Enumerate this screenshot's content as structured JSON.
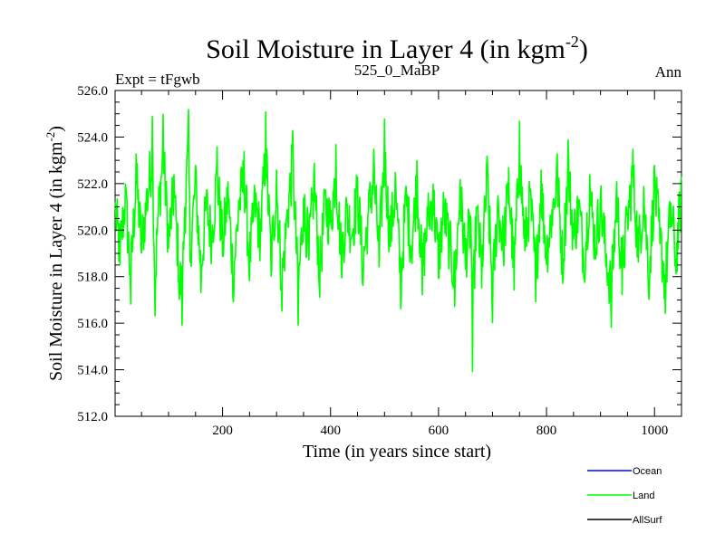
{
  "chart_data": {
    "type": "line",
    "title_main": "Soil Moisture in Layer 4 (in kgm",
    "title_sup": "-2",
    "title_tail": ")",
    "subtitle_left": "Expt = tFgwb",
    "subtitle_center": "525_0_MaBP",
    "subtitle_right": "Ann",
    "xlabel": "Time (in years since start)",
    "ylabel_main": "Soil Moisture in Layer 4 (in kgm",
    "ylabel_sup": "-2",
    "ylabel_tail": ")",
    "xlim": [
      1,
      1050
    ],
    "ylim": [
      512.0,
      526.0
    ],
    "xticks": [
      200,
      400,
      600,
      800,
      1000
    ],
    "xtick_labels": [
      "200",
      "400",
      "600",
      "800",
      "1000"
    ],
    "yticks": [
      512,
      514,
      516,
      518,
      520,
      522,
      524,
      526
    ],
    "ytick_labels": [
      "512.0",
      "514.0",
      "516.0",
      "518.0",
      "520.0",
      "522.0",
      "524.0",
      "526.0"
    ],
    "legend_position": "bottom-right",
    "series": [
      {
        "name": "Ocean",
        "color": "#0000ff",
        "values": []
      },
      {
        "name": "Land",
        "color": "#00ff00",
        "noise": "annual values fluctuate roughly 516-525 around a mean of ~520",
        "x": [
          1,
          10,
          20,
          30,
          40,
          50,
          60,
          70,
          75,
          80,
          90,
          100,
          110,
          120,
          125,
          130,
          137,
          140,
          150,
          160,
          170,
          180,
          190,
          200,
          210,
          220,
          230,
          240,
          250,
          260,
          270,
          280,
          290,
          300,
          310,
          320,
          330,
          340,
          350,
          360,
          370,
          380,
          390,
          400,
          410,
          420,
          430,
          440,
          450,
          460,
          470,
          480,
          490,
          500,
          510,
          520,
          530,
          540,
          550,
          560,
          570,
          580,
          590,
          600,
          610,
          620,
          630,
          640,
          650,
          660,
          663,
          670,
          680,
          690,
          700,
          710,
          720,
          730,
          740,
          750,
          760,
          770,
          780,
          790,
          800,
          810,
          820,
          830,
          840,
          850,
          860,
          870,
          880,
          890,
          900,
          910,
          920,
          930,
          940,
          950,
          960,
          970,
          980,
          990,
          1000,
          1010,
          1020,
          1030,
          1040,
          1050
        ],
        "values": [
          521.2,
          518.5,
          522.0,
          516.8,
          523.3,
          519.0,
          521.8,
          524.9,
          516.3,
          520.5,
          525.0,
          519.2,
          522.4,
          517.0,
          515.9,
          521.0,
          525.2,
          518.6,
          522.8,
          517.3,
          521.5,
          519.4,
          523.6,
          518.9,
          522.1,
          516.9,
          521.3,
          523.4,
          517.8,
          521.7,
          519.5,
          525.1,
          518.0,
          522.6,
          516.5,
          520.9,
          524.3,
          515.9,
          521.4,
          518.7,
          522.9,
          517.1,
          521.6,
          520.3,
          523.7,
          518.2,
          521.1,
          519.8,
          522.3,
          517.6,
          520.8,
          523.5,
          518.4,
          524.8,
          519.3,
          522.5,
          516.6,
          521.9,
          518.8,
          523.0,
          517.2,
          520.6,
          522.0,
          517.9,
          521.2,
          519.0,
          516.7,
          522.2,
          518.3,
          520.4,
          513.9,
          521.0,
          517.5,
          523.2,
          516.0,
          521.5,
          518.9,
          522.7,
          517.4,
          524.7,
          519.1,
          521.8,
          516.9,
          522.6,
          518.5,
          520.9,
          523.3,
          517.7,
          523.9,
          519.6,
          521.3,
          517.9,
          522.4,
          519.0,
          521.6,
          518.4,
          515.8,
          522.1,
          517.2,
          520.7,
          523.5,
          518.6,
          521.9,
          517.0,
          522.8,
          519.4,
          516.4,
          521.2,
          518.1,
          522.3
        ]
      },
      {
        "name": "AllSurf",
        "color": "#000000",
        "values": []
      }
    ]
  }
}
